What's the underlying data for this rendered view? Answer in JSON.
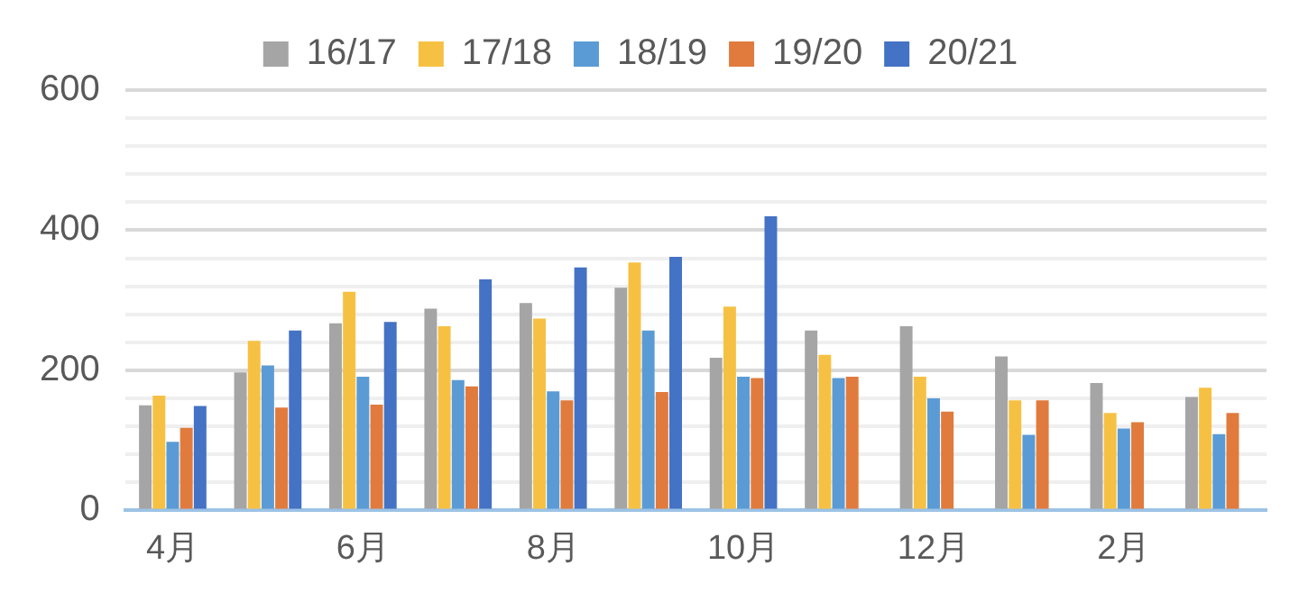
{
  "chart_data": {
    "type": "bar",
    "categories": [
      "4月",
      null,
      "6月",
      null,
      "8月",
      null,
      "10月",
      null,
      "12月",
      null,
      "2月",
      null
    ],
    "series": [
      {
        "name": "16/17",
        "color": "#a5a5a5",
        "values": [
          150,
          197,
          267,
          288,
          296,
          318,
          218,
          257,
          263,
          220,
          182,
          162
        ]
      },
      {
        "name": "17/18",
        "color": "#f6c143",
        "values": [
          164,
          242,
          312,
          263,
          274,
          354,
          291,
          222,
          191,
          157,
          139,
          175
        ]
      },
      {
        "name": "18/19",
        "color": "#5b9bd5",
        "values": [
          98,
          207,
          191,
          186,
          170,
          257,
          191,
          189,
          160,
          108,
          117,
          109
        ]
      },
      {
        "name": "19/20",
        "color": "#e07b3d",
        "values": [
          118,
          147,
          151,
          177,
          157,
          169,
          189,
          191,
          141,
          157,
          126,
          139
        ]
      },
      {
        "name": "20/21",
        "color": "#4472c4",
        "values": [
          149,
          257,
          269,
          330,
          347,
          362,
          420,
          null,
          null,
          null,
          null,
          null
        ]
      }
    ],
    "ylim": [
      0,
      600
    ],
    "yticks": [
      0,
      {
        "value": 40,
        "label": null
      },
      {
        "value": 80,
        "label": null
      },
      {
        "value": 120,
        "label": null
      },
      {
        "value": 160,
        "label": null
      },
      200,
      {
        "value": 240,
        "label": null
      },
      {
        "value": 280,
        "label": null
      },
      {
        "value": 320,
        "label": null
      },
      {
        "value": 360,
        "label": null
      },
      400,
      {
        "value": 440,
        "label": null
      },
      {
        "value": 480,
        "label": null
      },
      {
        "value": 520,
        "label": null
      },
      {
        "value": 560,
        "label": null
      },
      600
    ],
    "grid": "y",
    "legend": "top"
  }
}
